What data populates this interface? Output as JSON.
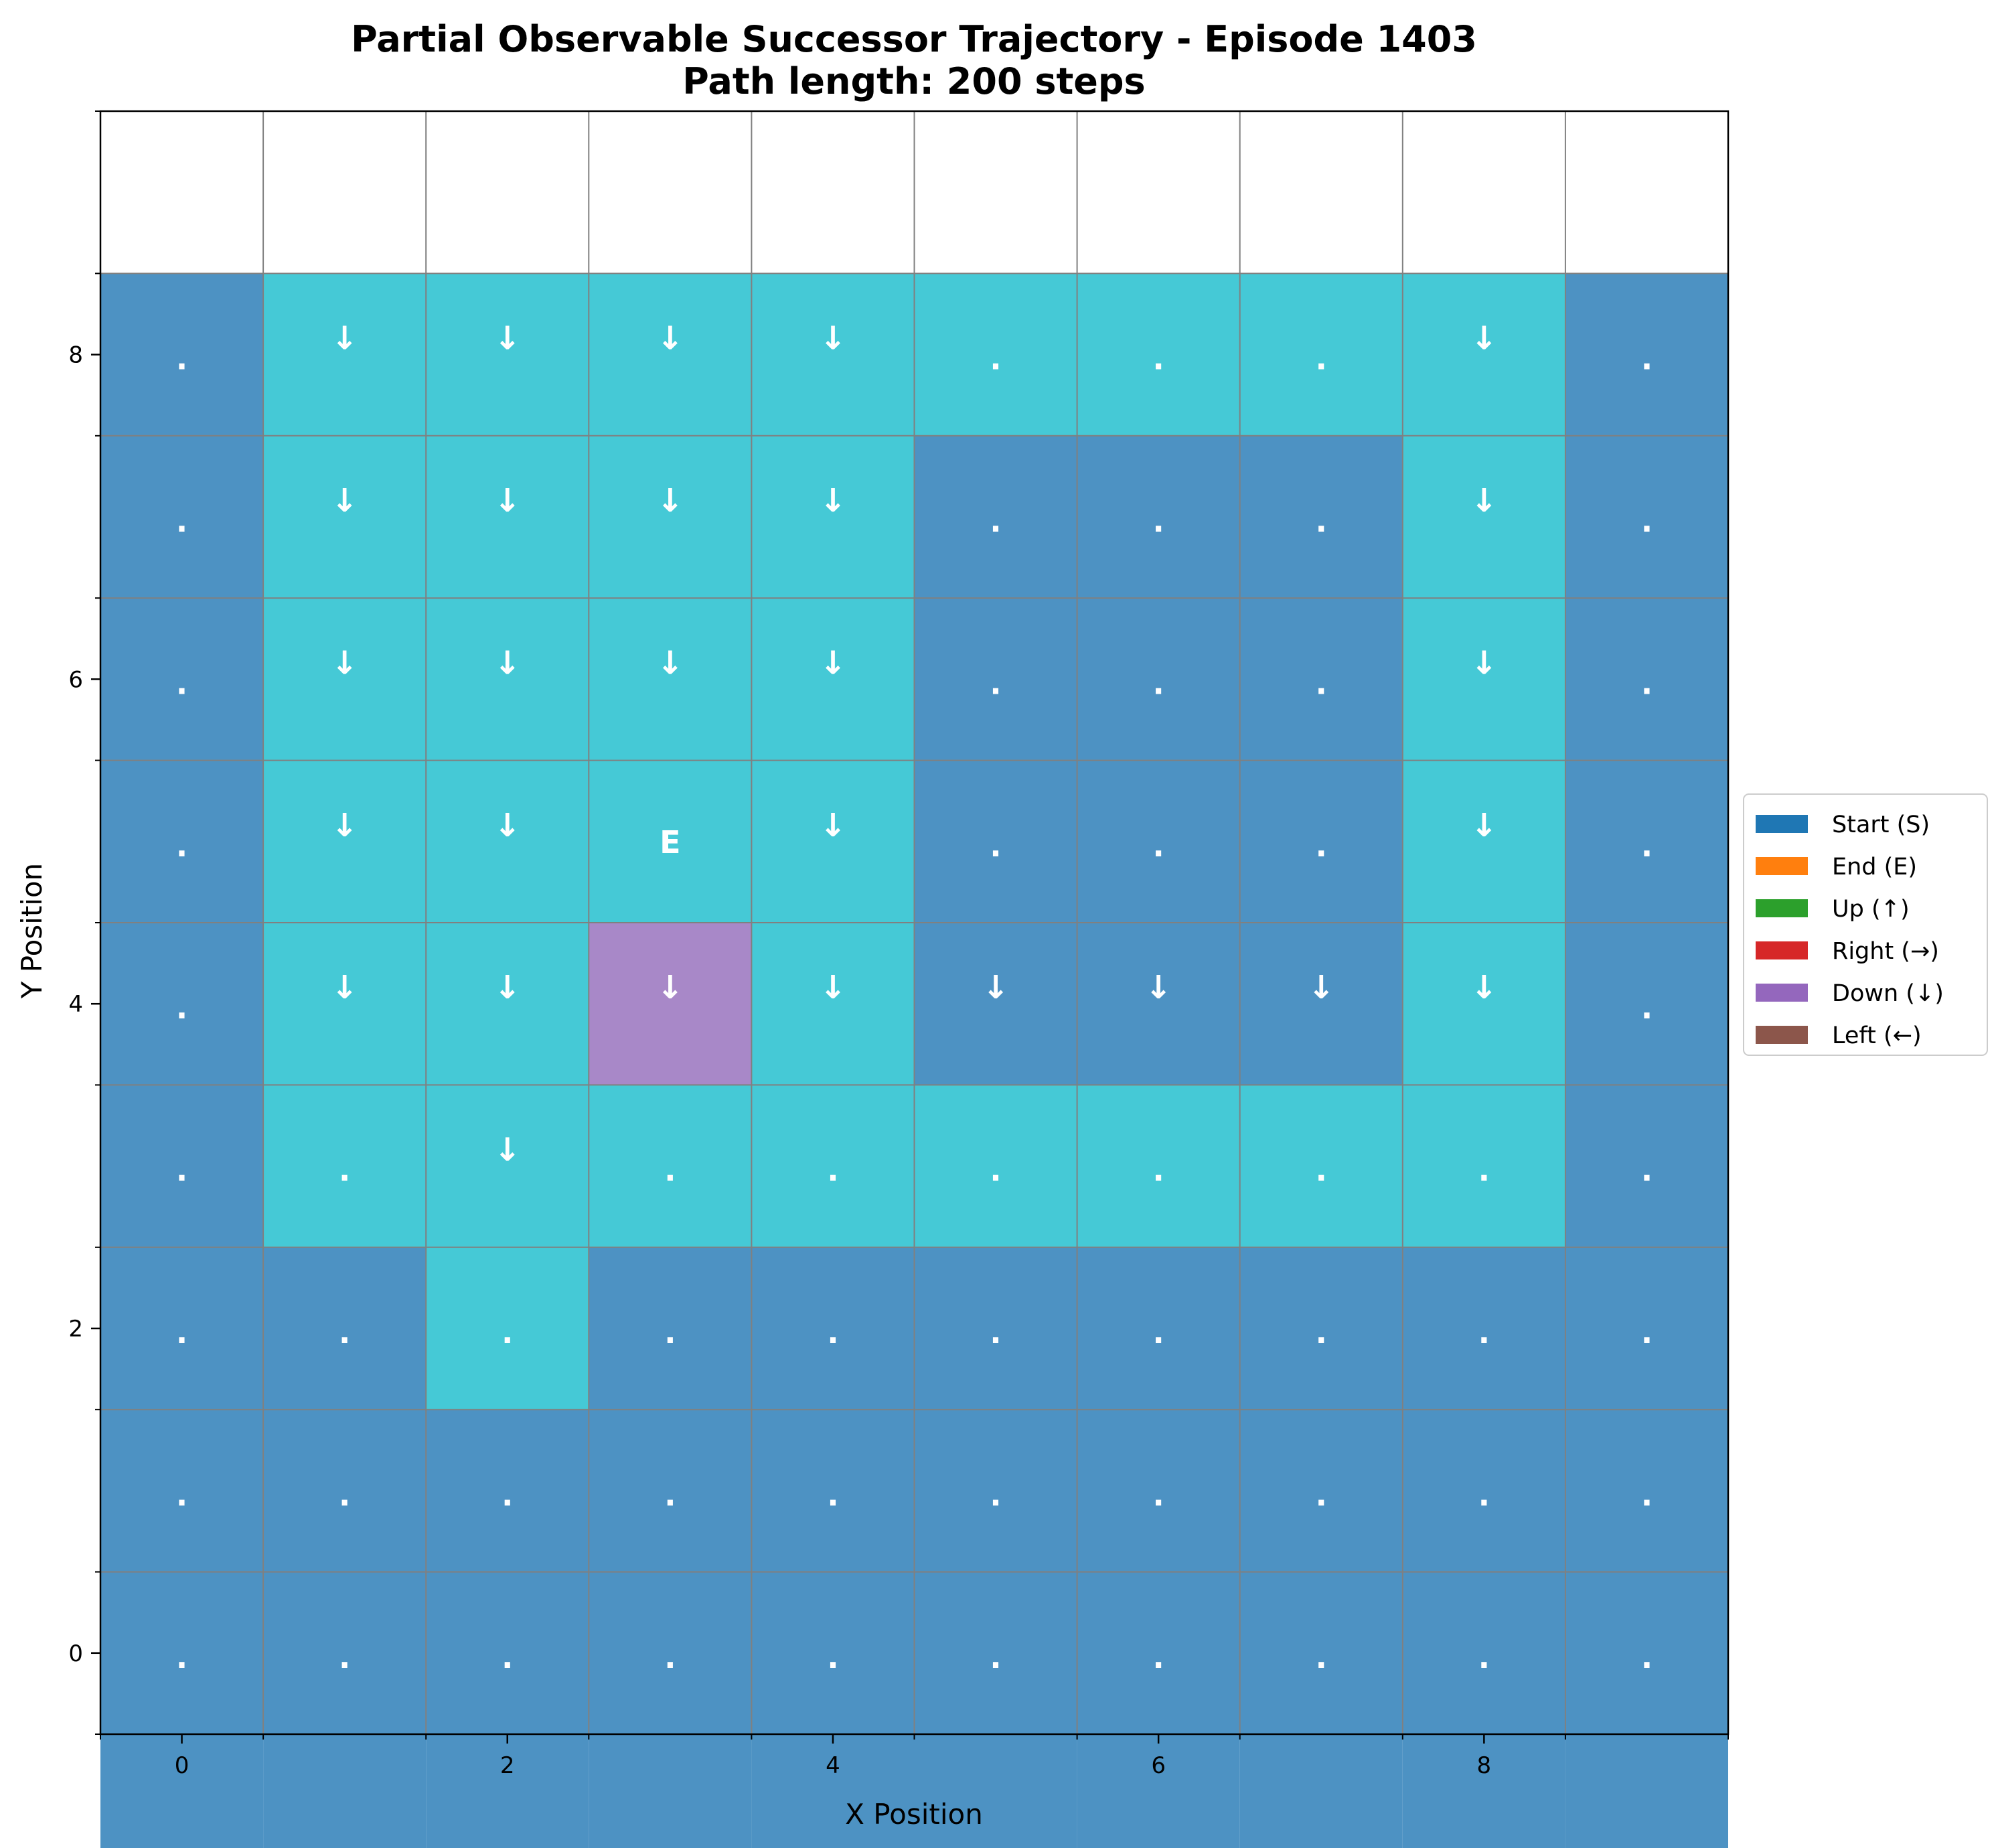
{
  "chart_data": {
    "type": "heatmap",
    "title": "Partial Observable Successor Trajectory - Episode 1403",
    "subtitle": "Path length: 200 steps",
    "xlabel": "X Position",
    "ylabel": "Y Position",
    "xlim": [
      -0.5,
      9.5
    ],
    "ylim": [
      9.5,
      -0.5
    ],
    "x_ticks": [
      "0",
      "2",
      "4",
      "6",
      "8"
    ],
    "y_ticks": [
      "0",
      "2",
      "4",
      "6",
      "8"
    ],
    "grid": true,
    "legend_position": "center right, outside plot",
    "colors": {
      "unvisited": "#4d92c3",
      "visited": "#45c9d6",
      "end": "#a888c8",
      "grid_line": "#808080",
      "cell_text": "#ffffff"
    },
    "cell_states": [
      [
        "unvisited",
        "unvisited",
        "unvisited",
        "unvisited",
        "unvisited",
        "unvisited",
        "unvisited",
        "unvisited",
        "unvisited",
        "unvisited"
      ],
      [
        "unvisited",
        "unvisited",
        "unvisited",
        "unvisited",
        "unvisited",
        "unvisited",
        "unvisited",
        "unvisited",
        "unvisited",
        "unvisited"
      ],
      [
        "unvisited",
        "unvisited",
        "unvisited",
        "unvisited",
        "unvisited",
        "unvisited",
        "unvisited",
        "unvisited",
        "unvisited",
        "unvisited"
      ],
      [
        "unvisited",
        "unvisited",
        "visited",
        "unvisited",
        "unvisited",
        "unvisited",
        "unvisited",
        "unvisited",
        "unvisited",
        "unvisited"
      ],
      [
        "unvisited",
        "visited",
        "visited",
        "visited",
        "visited",
        "visited",
        "visited",
        "visited",
        "visited",
        "unvisited"
      ],
      [
        "unvisited",
        "visited",
        "visited",
        "end",
        "visited",
        "unvisited",
        "unvisited",
        "unvisited",
        "visited",
        "unvisited"
      ],
      [
        "unvisited",
        "visited",
        "visited",
        "visited",
        "visited",
        "unvisited",
        "unvisited",
        "unvisited",
        "visited",
        "unvisited"
      ],
      [
        "unvisited",
        "visited",
        "visited",
        "visited",
        "visited",
        "unvisited",
        "unvisited",
        "unvisited",
        "visited",
        "unvisited"
      ],
      [
        "unvisited",
        "visited",
        "visited",
        "visited",
        "visited",
        "unvisited",
        "unvisited",
        "unvisited",
        "visited",
        "unvisited"
      ],
      [
        "unvisited",
        "visited",
        "visited",
        "visited",
        "visited",
        "visited",
        "visited",
        "visited",
        "visited",
        "unvisited"
      ]
    ],
    "cell_symbols": [
      [
        ".",
        ".",
        ".",
        ".",
        ".",
        ".",
        ".",
        ".",
        ".",
        "."
      ],
      [
        ".",
        ".",
        ".",
        ".",
        ".",
        ".",
        ".",
        ".",
        ".",
        "."
      ],
      [
        ".",
        ".",
        ".",
        ".",
        ".",
        ".",
        ".",
        ".",
        ".",
        "."
      ],
      [
        ".",
        ".",
        "↓",
        ".",
        ".",
        ".",
        ".",
        ".",
        ".",
        "."
      ],
      [
        ".",
        "↓",
        "↓",
        "↓",
        "↓",
        "↓",
        "↓",
        "↓",
        "↓",
        "."
      ],
      [
        ".",
        "↓",
        "↓",
        "E",
        "↓",
        ".",
        ".",
        ".",
        "↓",
        "."
      ],
      [
        ".",
        "↓",
        "↓",
        "↓",
        "↓",
        ".",
        ".",
        ".",
        "↓",
        "."
      ],
      [
        ".",
        "↓",
        "↓",
        "↓",
        "↓",
        ".",
        ".",
        ".",
        "↓",
        "."
      ],
      [
        ".",
        "↓",
        "↓",
        "↓",
        "↓",
        ".",
        ".",
        ".",
        "↓",
        "."
      ],
      [
        ".",
        "↓",
        "↓",
        "↓",
        "↓",
        "↓",
        "↓",
        "↓",
        "↓",
        "."
      ]
    ],
    "legend": [
      {
        "label": "Start (S)",
        "color": "#1f77b4"
      },
      {
        "label": "End (E)",
        "color": "#ff7f0e"
      },
      {
        "label": "Up (↑)",
        "color": "#2ca02c"
      },
      {
        "label": "Right (→)",
        "color": "#d62728"
      },
      {
        "label": "Down (↓)",
        "color": "#9467bd"
      },
      {
        "label": "Left (←)",
        "color": "#8c564b"
      }
    ]
  }
}
